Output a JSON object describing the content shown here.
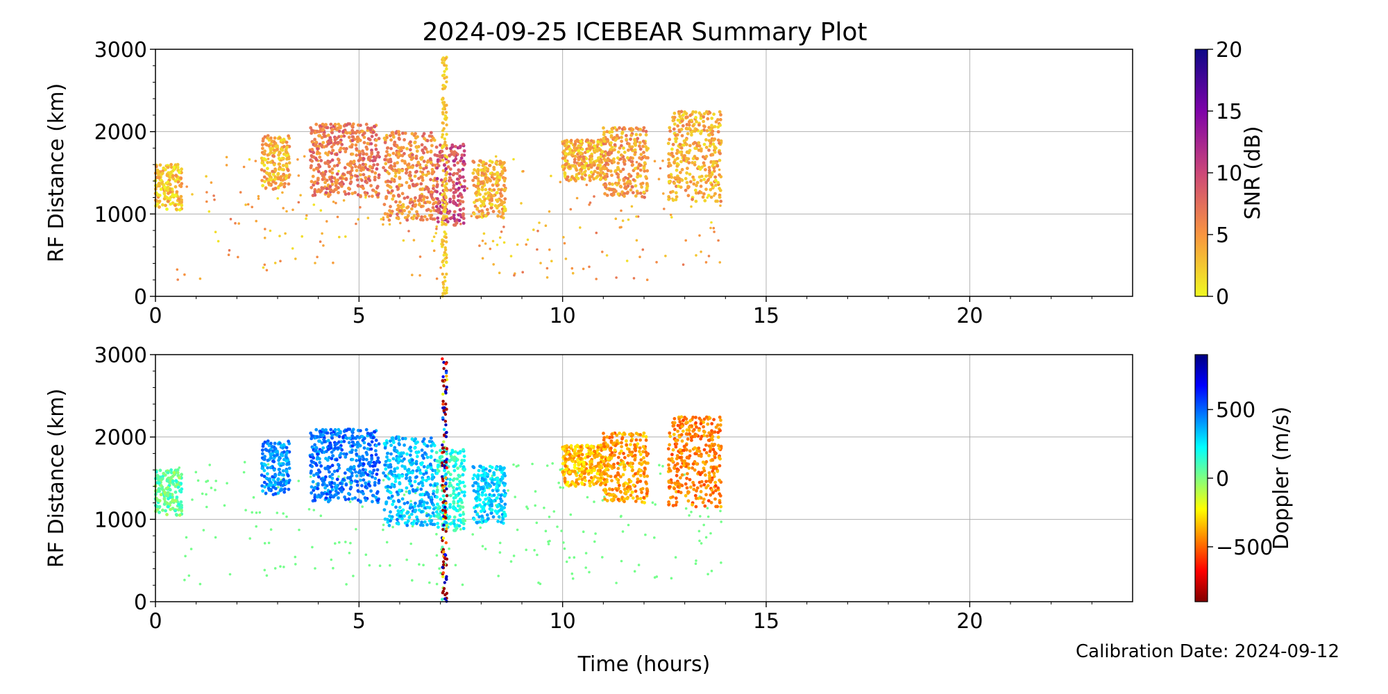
{
  "figure": {
    "title": "2024-09-25 ICEBEAR Summary Plot",
    "xlabel": "Time (hours)",
    "calibration_text": "Calibration Date: 2024-09-12"
  },
  "chart_data": [
    {
      "type": "scatter",
      "panel": "top",
      "title": "2024-09-25 ICEBEAR Summary Plot",
      "xlabel": "Time (hours)",
      "ylabel": "RF Distance (km)",
      "xlim": [
        0,
        24
      ],
      "ylim": [
        0,
        3000
      ],
      "xticks": [
        0,
        5,
        10,
        15,
        20
      ],
      "yticks": [
        0,
        1000,
        2000,
        3000
      ],
      "grid": true,
      "color_variable": "SNR (dB)",
      "colorbar": {
        "label": "SNR (dB)",
        "range": [
          0,
          20
        ],
        "ticks": [
          0,
          5,
          10,
          15,
          20
        ],
        "colormap": "plasma_r",
        "stops": [
          "#f0f921",
          "#f89540",
          "#cc4778",
          "#7e03a8",
          "#0d0887"
        ]
      },
      "clusters": [
        {
          "t": [
            0.0,
            0.65
          ],
          "r": [
            1050,
            1600
          ],
          "snr": 2
        },
        {
          "t": [
            2.6,
            3.3
          ],
          "r": [
            1300,
            1950
          ],
          "snr": 3
        },
        {
          "t": [
            3.8,
            5.5
          ],
          "r": [
            1200,
            2100
          ],
          "snr": 6
        },
        {
          "t": [
            5.6,
            6.9
          ],
          "r": [
            900,
            2000
          ],
          "snr": 5
        },
        {
          "t": [
            6.9,
            7.6
          ],
          "r": [
            850,
            1850
          ],
          "snr": 9
        },
        {
          "t": [
            7.8,
            8.6
          ],
          "r": [
            950,
            1650
          ],
          "snr": 3
        },
        {
          "t": [
            10.0,
            11.0
          ],
          "r": [
            1400,
            1900
          ],
          "snr": 3
        },
        {
          "t": [
            11.0,
            12.1
          ],
          "r": [
            1200,
            2050
          ],
          "snr": 4
        },
        {
          "t": [
            12.6,
            13.9
          ],
          "r": [
            1150,
            2250
          ],
          "snr": 3
        }
      ],
      "streak": {
        "t": 7.1,
        "r": [
          0,
          2950
        ],
        "snr": 1
      }
    },
    {
      "type": "scatter",
      "panel": "bottom",
      "xlabel": "Time (hours)",
      "ylabel": "RF Distance (km)",
      "xlim": [
        0,
        24
      ],
      "ylim": [
        0,
        3000
      ],
      "xticks": [
        0,
        5,
        10,
        15,
        20
      ],
      "yticks": [
        0,
        1000,
        2000,
        3000
      ],
      "grid": true,
      "color_variable": "Doppler (m/s)",
      "colorbar": {
        "label": "Doppler (m/s)",
        "range": [
          -900,
          900
        ],
        "ticks": [
          -500,
          0,
          500
        ],
        "tick_labels": [
          "−500",
          "0",
          "500"
        ],
        "colormap": "jet_r",
        "stops": [
          "#800000",
          "#ff0000",
          "#ff8000",
          "#ffff00",
          "#80ff80",
          "#00ffff",
          "#0080ff",
          "#0000ff",
          "#000080"
        ]
      },
      "clusters": [
        {
          "t": [
            0.0,
            0.65
          ],
          "r": [
            1050,
            1600
          ],
          "doppler": 50
        },
        {
          "t": [
            2.6,
            3.3
          ],
          "r": [
            1300,
            1950
          ],
          "doppler": 420
        },
        {
          "t": [
            3.8,
            5.5
          ],
          "r": [
            1200,
            2100
          ],
          "doppler": 470
        },
        {
          "t": [
            5.6,
            6.9
          ],
          "r": [
            900,
            2000
          ],
          "doppler": 350
        },
        {
          "t": [
            6.9,
            7.6
          ],
          "r": [
            850,
            1850
          ],
          "doppler": 180
        },
        {
          "t": [
            7.8,
            8.6
          ],
          "r": [
            950,
            1650
          ],
          "doppler": 300
        },
        {
          "t": [
            10.0,
            11.0
          ],
          "r": [
            1400,
            1900
          ],
          "doppler": -350
        },
        {
          "t": [
            11.0,
            12.1
          ],
          "r": [
            1200,
            2050
          ],
          "doppler": -400
        },
        {
          "t": [
            12.6,
            13.9
          ],
          "r": [
            1150,
            2250
          ],
          "doppler": -450
        }
      ],
      "streak": {
        "t": 7.1,
        "r": [
          0,
          2950
        ],
        "doppler": "mixed"
      }
    }
  ]
}
